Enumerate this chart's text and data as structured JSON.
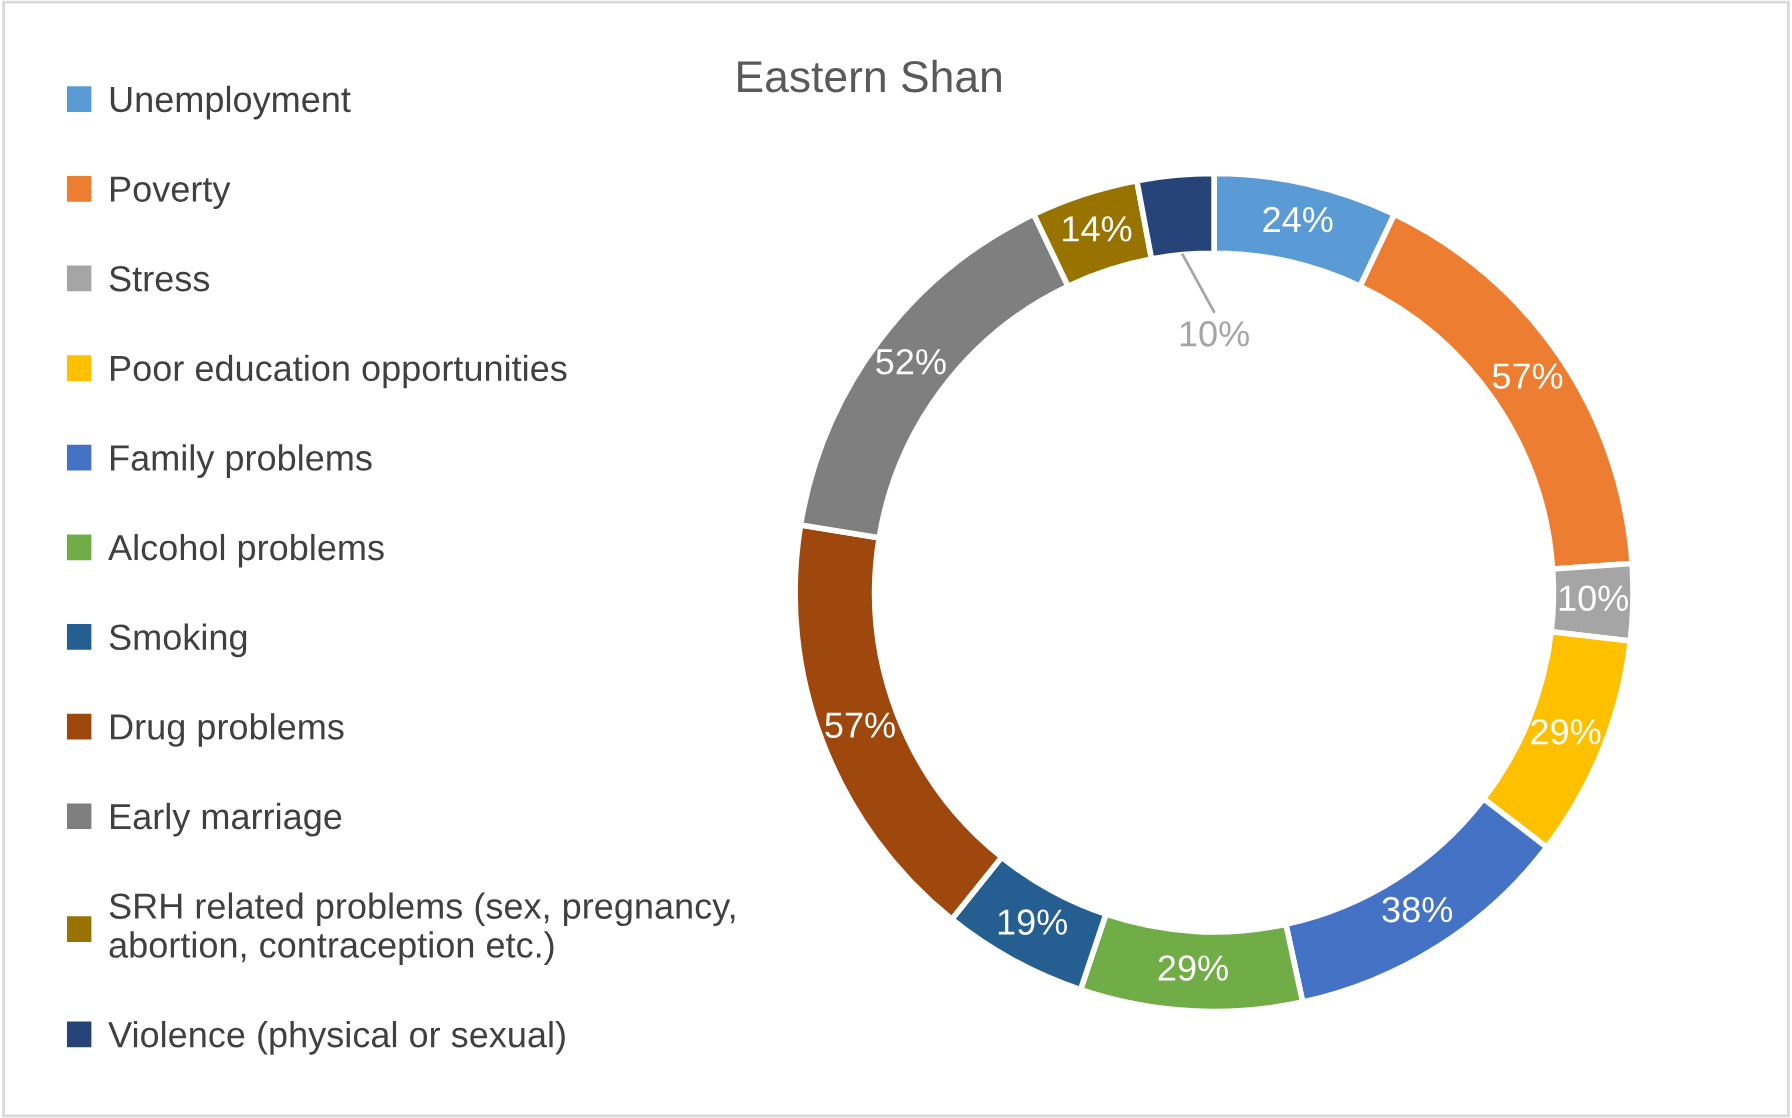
{
  "chart_data": {
    "type": "donut",
    "title": "Eastern Shan",
    "categories": [
      "Unemployment",
      "Poverty",
      "Stress",
      "Poor education opportunities",
      "Family problems",
      "Alcohol problems",
      "Smoking",
      "Drug problems",
      "Early marriage",
      "SRH related problems (sex, pregnancy,\nabortion, contraception etc.)",
      "Violence (physical or sexual)"
    ],
    "values": [
      24,
      57,
      10,
      29,
      38,
      29,
      19,
      57,
      52,
      14,
      10
    ],
    "value_labels": [
      "24%",
      "57%",
      "10%",
      "29%",
      "38%",
      "29%",
      "19%",
      "57%",
      "52%",
      "14%",
      "10%"
    ],
    "colors": [
      "#5b9bd5",
      "#ed7d31",
      "#a5a5a5",
      "#ffc000",
      "#4472c4",
      "#70ad47",
      "#255e91",
      "#9e480e",
      "#7f7f7f",
      "#997300",
      "#264478"
    ],
    "legend": "left"
  }
}
